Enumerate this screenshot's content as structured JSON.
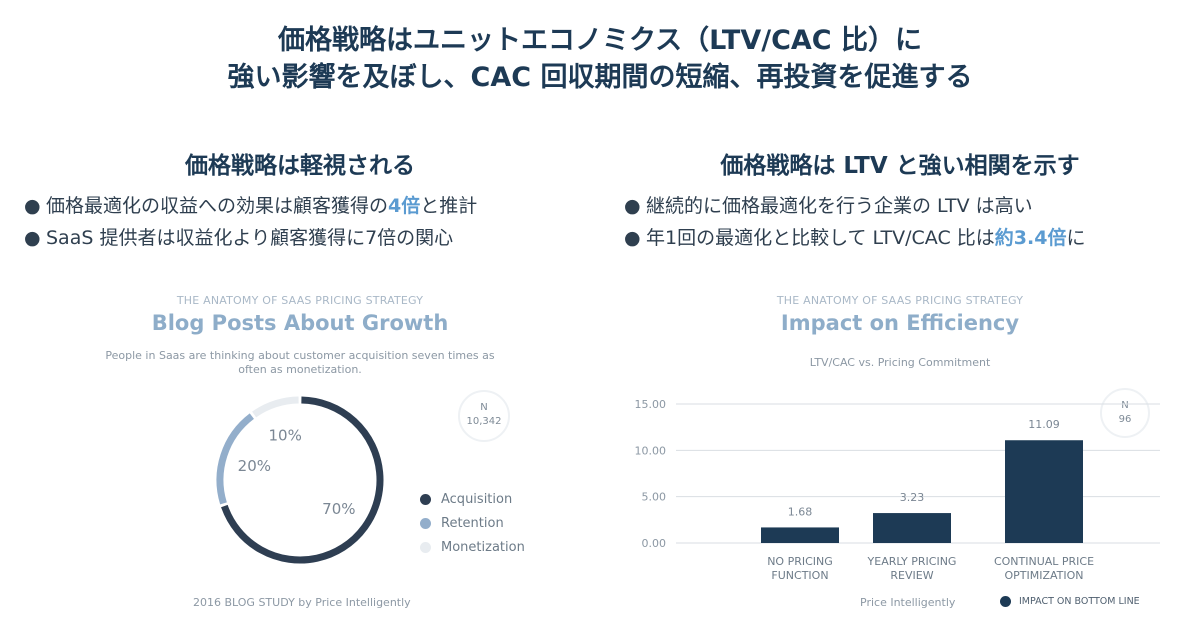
{
  "headline": {
    "line1": "価格戦略はユニットエコノミクス（LTV/CAC 比）に",
    "line2": "強い影響を及ぼし、CAC 回収期間の短縮、再投資を促進する"
  },
  "left": {
    "heading": "価格戦略は軽視される",
    "bullets": [
      {
        "pre": "価格最適化の収益への効果は顧客獲得の",
        "hl": "4倍",
        "post": "と推計"
      },
      {
        "pre": "SaaS 提供者は収益化より顧客獲得に7倍の関心",
        "hl": "",
        "post": ""
      }
    ]
  },
  "right": {
    "heading": "価格戦略は LTV と強い相関を示す",
    "bullets": [
      {
        "pre": "継続的に価格最適化を行う企業の LTV は高い",
        "hl": "",
        "post": ""
      },
      {
        "pre": "年1回の最適化と比較して LTV/CAC 比は",
        "hl": "約3.4倍",
        "post": "に"
      }
    ]
  },
  "bullet_glyph": "●",
  "colors": {
    "primary": "#1d3a55",
    "accent": "#5b9bd1",
    "retention": "#93aecb",
    "monetization": "#e8ecf0"
  },
  "chart_data": [
    {
      "type": "pie",
      "kicker": "THE ANATOMY OF SAAS PRICING STRATEGY",
      "title": "Blog Posts About Growth",
      "subtitle_line1": "People in Saas are thinking about customer acquisition seven times as",
      "subtitle_line2": "often as monetization.",
      "n_label": "N",
      "n_value": "10,342",
      "slices": [
        {
          "label": "Acquisition",
          "value": 70,
          "display": "70%",
          "color": "#2e3e52"
        },
        {
          "label": "Retention",
          "value": 20,
          "display": "20%",
          "color": "#93aecb"
        },
        {
          "label": "Monetization",
          "value": 10,
          "display": "10%",
          "color": "#e8ecf0"
        }
      ],
      "footer": "2016 BLOG STUDY by Price Intelligently"
    },
    {
      "type": "bar",
      "kicker": "THE ANATOMY OF SAAS PRICING STRATEGY",
      "title": "Impact on Efficiency",
      "subtitle": "LTV/CAC vs. Pricing Commitment",
      "n_label": "N",
      "n_value": "96",
      "categories": [
        [
          "NO PRICING",
          "FUNCTION"
        ],
        [
          "YEARLY PRICING",
          "REVIEW"
        ],
        [
          "CONTINUAL PRICE",
          "OPTIMIZATION"
        ]
      ],
      "values": [
        1.68,
        3.23,
        11.09
      ],
      "value_labels": [
        "1.68",
        "3.23",
        "11.09"
      ],
      "ylim": [
        0,
        15
      ],
      "yticks": [
        "0.00",
        "5.00",
        "10.00",
        "15.00"
      ],
      "ytick_values": [
        0,
        5,
        10,
        15
      ],
      "grid": true,
      "footer": "Price Intelligently",
      "legend": "IMPACT ON BOTTOM LINE",
      "bar_color": "#1d3a55"
    }
  ]
}
